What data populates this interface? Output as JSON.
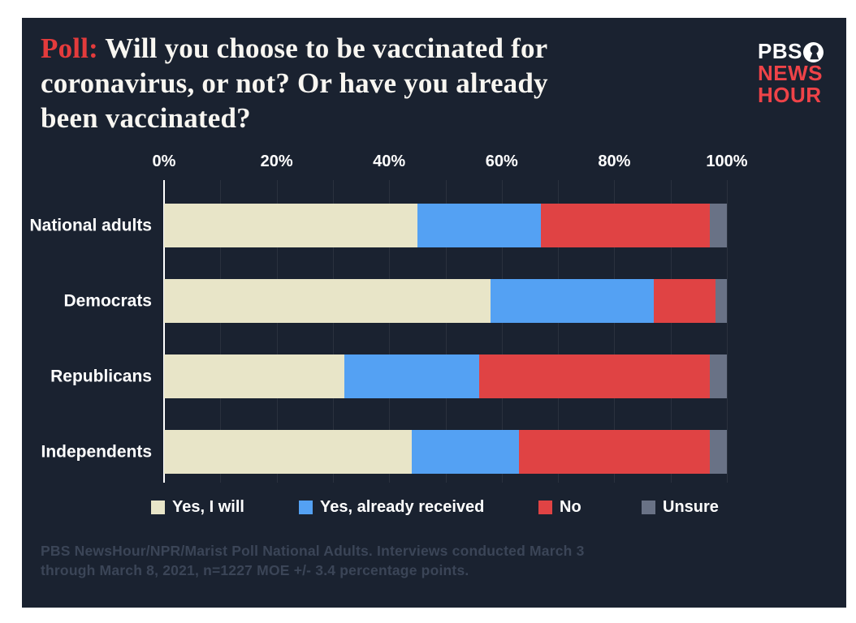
{
  "header": {
    "title_prefix": "Poll:",
    "title_text": " Will you choose to be vaccinated for coronavirus, or not? Or have you already been vaccinated?",
    "accent_color": "#e43b3c"
  },
  "logo": {
    "line1": "PBS",
    "line2": "NEWS",
    "line3": "HOUR",
    "red": "#ef4348",
    "white": "#ffffff"
  },
  "chart_data": {
    "type": "bar",
    "orientation": "horizontal",
    "stacked": true,
    "grid": true,
    "legend_position": "bottom",
    "xlim": [
      0,
      100
    ],
    "x_ticks": [
      "0%",
      "20%",
      "40%",
      "60%",
      "80%",
      "100%"
    ],
    "categories": [
      "National adults",
      "Democrats",
      "Republicans",
      "Independents"
    ],
    "series": [
      {
        "name": "Yes, I will",
        "color": "#e8e5c8",
        "values": [
          45,
          58,
          32,
          44
        ]
      },
      {
        "name": "Yes, already received",
        "color": "#54a1f3",
        "values": [
          22,
          29,
          24,
          19
        ]
      },
      {
        "name": "No",
        "color": "#e04344",
        "values": [
          30,
          11,
          41,
          34
        ]
      },
      {
        "name": "Unsure",
        "color": "#697286",
        "values": [
          3,
          2,
          3,
          3
        ]
      }
    ]
  },
  "colors": {
    "card_background": "#1a2230",
    "page_background": "#ffffff"
  },
  "footer": {
    "line1": "PBS NewsHour/NPR/Marist Poll National Adults. Interviews conducted March 3",
    "line2": "through March 8, 2021, n=1227 MOE +/- 3.4 percentage points."
  }
}
